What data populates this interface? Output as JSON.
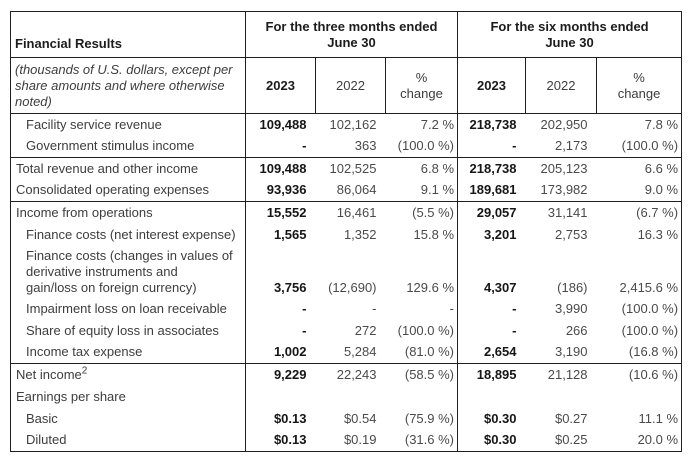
{
  "table": {
    "corner_label": "Financial Results",
    "note": "(thousands of U.S. dollars, except per share amounts and where otherwise noted)",
    "groups": [
      {
        "title": "For the three months ended\nJune 30"
      },
      {
        "title": "For the six months ended\nJune 30"
      }
    ],
    "col_headers": [
      "2023",
      "2022",
      "%\nchange",
      "2023",
      "2022",
      "%\nchange"
    ],
    "rows": [
      {
        "label": "Facility service revenue",
        "values": [
          "109,488",
          "102,162",
          "7.2 %",
          "218,738",
          "202,950",
          "7.8 %"
        ]
      },
      {
        "label": "Government stimulus income",
        "values": [
          "-",
          "363",
          "(100.0 %)",
          "-",
          "2,173",
          "(100.0 %)"
        ]
      },
      {
        "label": "Total revenue and other income",
        "values": [
          "109,488",
          "102,525",
          "6.8 %",
          "218,738",
          "205,123",
          "6.6 %"
        ]
      },
      {
        "label": "Consolidated operating expenses",
        "values": [
          "93,936",
          "86,064",
          "9.1 %",
          "189,681",
          "173,982",
          "9.0 %"
        ]
      },
      {
        "label": "Income from operations",
        "values": [
          "15,552",
          "16,461",
          "(5.5 %)",
          "29,057",
          "31,141",
          "(6.7 %)"
        ]
      },
      {
        "label": "Finance costs (net interest expense)",
        "values": [
          "1,565",
          "1,352",
          "15.8 %",
          "3,201",
          "2,753",
          "16.3 %"
        ]
      },
      {
        "label": "Finance costs (changes in values of\nderivative instruments and\ngain/loss on foreign currency)",
        "values": [
          "3,756",
          "(12,690)",
          "129.6 %",
          "4,307",
          "(186)",
          "2,415.6 %"
        ]
      },
      {
        "label": "Impairment loss on loan receivable",
        "values": [
          "-",
          "-",
          "-",
          "-",
          "3,990",
          "(100.0 %)"
        ]
      },
      {
        "label": "Share of equity loss in associates",
        "values": [
          "-",
          "272",
          "(100.0 %)",
          "-",
          "266",
          "(100.0 %)"
        ]
      },
      {
        "label": "Income tax expense",
        "values": [
          "1,002",
          "5,284",
          "(81.0 %)",
          "2,654",
          "3,190",
          "(16.8 %)"
        ]
      },
      {
        "label": "Net income",
        "sup": "2",
        "values": [
          "9,229",
          "22,243",
          "(58.5 %)",
          "18,895",
          "21,128",
          "(10.6 %)"
        ]
      },
      {
        "label": "Earnings per share",
        "values": [
          "",
          "",
          "",
          "",
          "",
          ""
        ]
      },
      {
        "label": "Basic",
        "values": [
          "$0.13",
          "$0.54",
          "(75.9 %)",
          "$0.30",
          "$0.27",
          "11.1 %"
        ]
      },
      {
        "label": "Diluted",
        "values": [
          "$0.13",
          "$0.19",
          "(31.6 %)",
          "$0.30",
          "$0.25",
          "20.0 %"
        ]
      }
    ]
  }
}
